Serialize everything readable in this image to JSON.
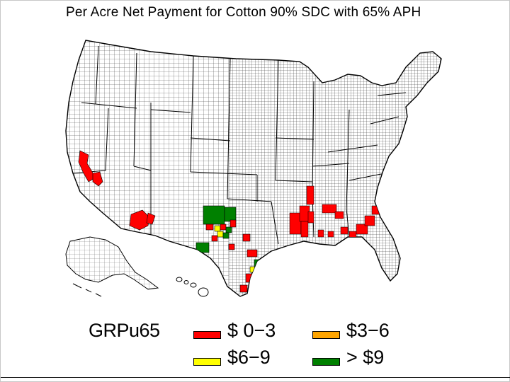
{
  "title": "Per Acre Net Payment for Cotton 90% SDC with 65% APH",
  "legend": {
    "variable": "GRPu65",
    "items": [
      {
        "label": "$ 0−3",
        "color": "#ff0000"
      },
      {
        "label": "$3−6",
        "color": "#ffa500"
      },
      {
        "label": "$6−9",
        "color": "#ffff00"
      },
      {
        "label": "> $9",
        "color": "#008000"
      }
    ]
  },
  "map": {
    "base_fill": "#ffffff",
    "boundary_color": "#000000"
  }
}
